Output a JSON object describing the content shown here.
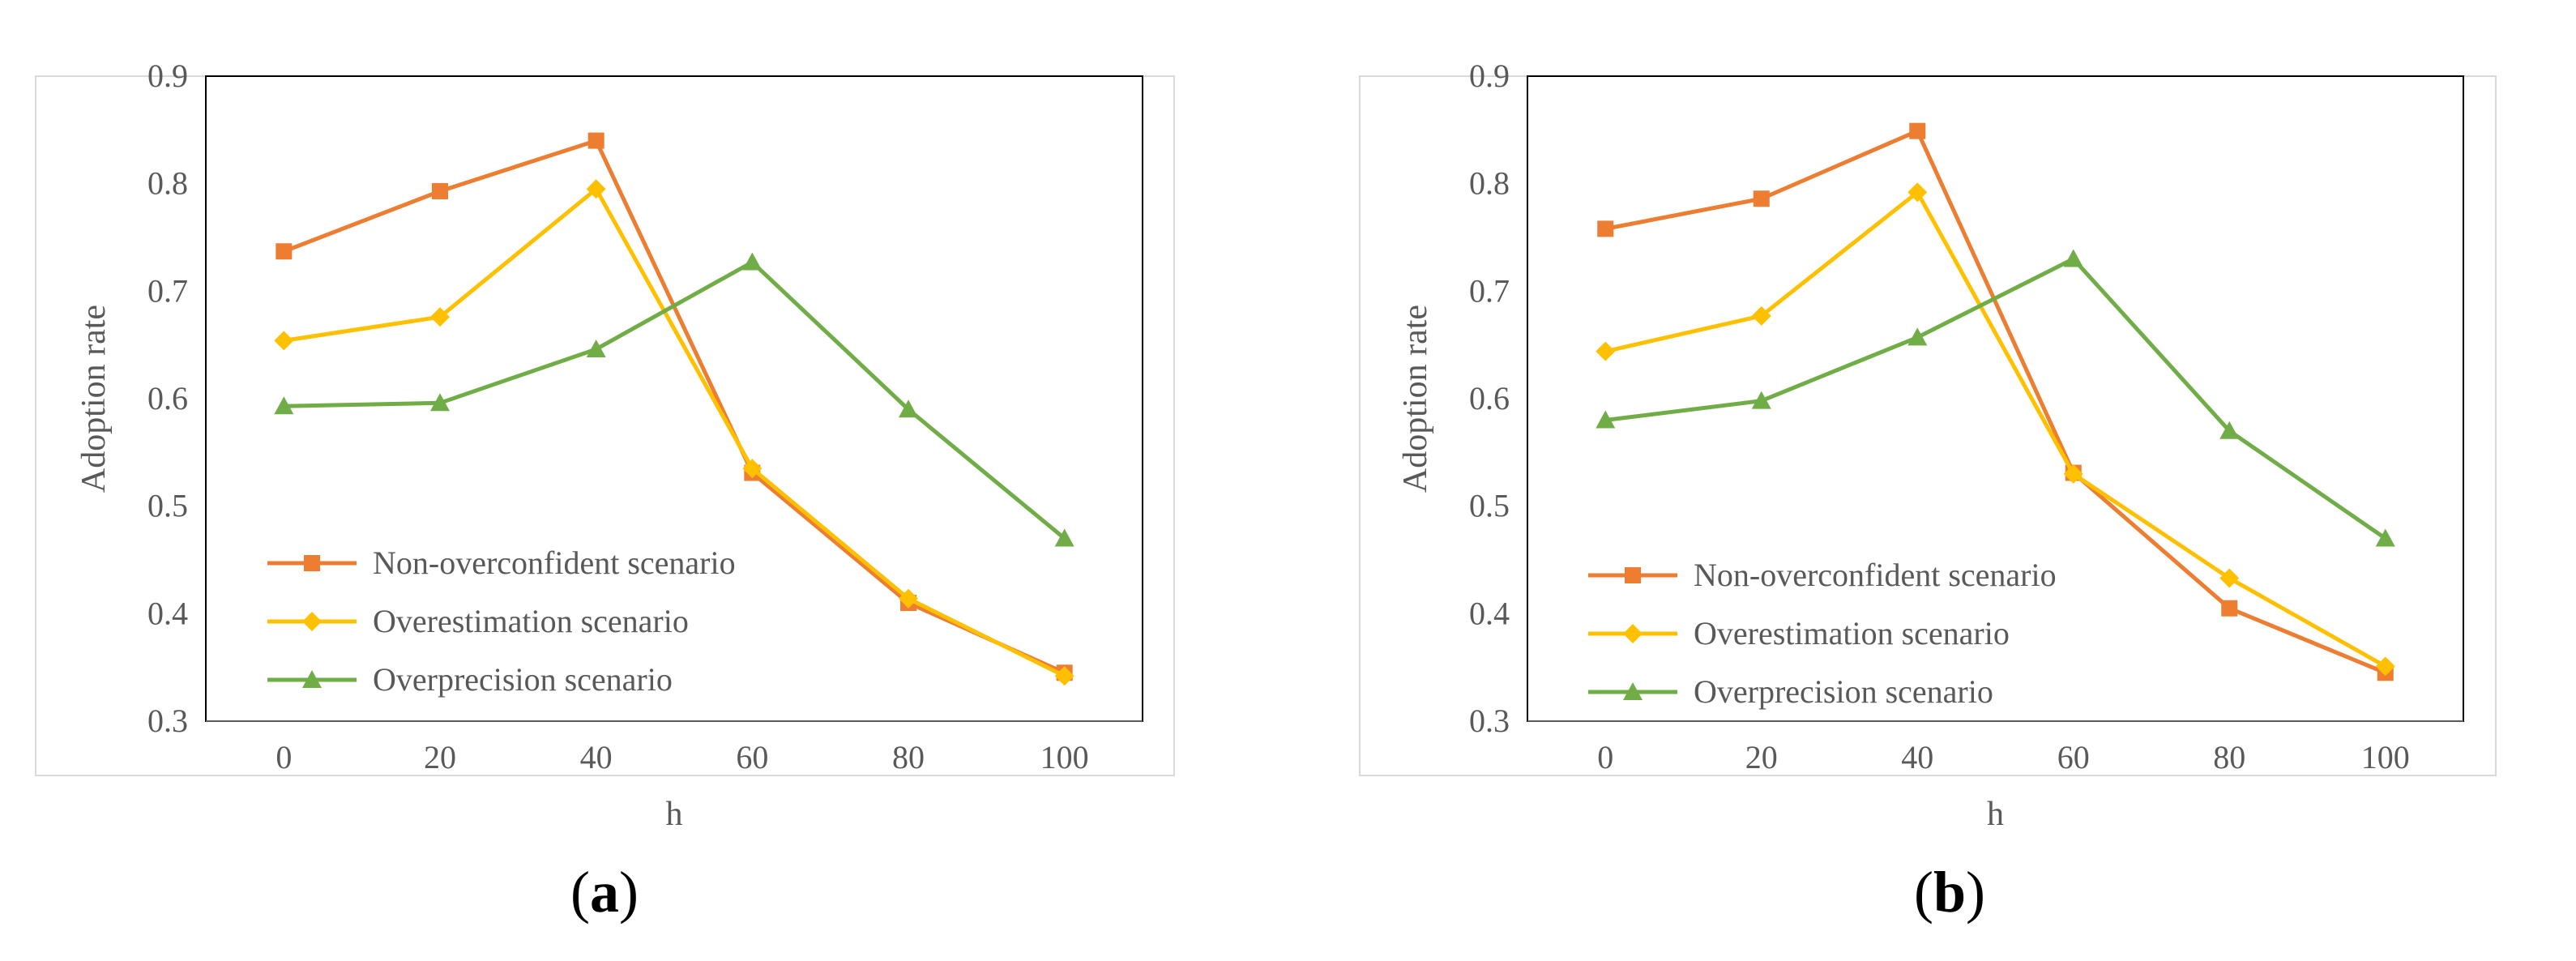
{
  "chart_data": [
    {
      "type": "line",
      "panel_label_open": "(",
      "panel_label_letter": "a",
      "panel_label_close": ")",
      "xlabel": "h",
      "ylabel": "Adoption rate",
      "x": [
        0,
        20,
        40,
        60,
        80,
        100
      ],
      "x_tick_labels": [
        "0",
        "20",
        "40",
        "60",
        "80",
        "100"
      ],
      "ylim": [
        0.3,
        0.9
      ],
      "y_ticks": [
        0.3,
        0.4,
        0.5,
        0.6,
        0.7,
        0.8,
        0.9
      ],
      "y_tick_labels": [
        "0.3",
        "0.4",
        "0.5",
        "0.6",
        "0.7",
        "0.8",
        "0.9"
      ],
      "grid": false,
      "legend_position": "bottom-left",
      "series": [
        {
          "name": "Non-overconfident scenario",
          "marker": "square",
          "color": "#ED7D31",
          "values": [
            0.737,
            0.793,
            0.84,
            0.531,
            0.41,
            0.345
          ]
        },
        {
          "name": "Overestimation  scenario",
          "marker": "diamond",
          "color": "#FFC000",
          "values": [
            0.654,
            0.676,
            0.795,
            0.535,
            0.414,
            0.342
          ]
        },
        {
          "name": "Overprecision scenario",
          "marker": "triangle",
          "color": "#70AD47",
          "values": [
            0.593,
            0.596,
            0.646,
            0.727,
            0.59,
            0.47
          ]
        }
      ]
    },
    {
      "type": "line",
      "panel_label_open": "(",
      "panel_label_letter": "b",
      "panel_label_close": ")",
      "xlabel": "h",
      "ylabel": "Adoption rate",
      "x": [
        0,
        20,
        40,
        60,
        80,
        100
      ],
      "x_tick_labels": [
        "0",
        "20",
        "40",
        "60",
        "80",
        "100"
      ],
      "ylim": [
        0.3,
        0.9
      ],
      "y_ticks": [
        0.3,
        0.4,
        0.5,
        0.6,
        0.7,
        0.8,
        0.9
      ],
      "y_tick_labels": [
        "0.3",
        "0.4",
        "0.5",
        "0.6",
        "0.7",
        "0.8",
        "0.9"
      ],
      "grid": false,
      "legend_position": "bottom-left",
      "series": [
        {
          "name": "Non-overconfident scenario",
          "marker": "square",
          "color": "#ED7D31",
          "values": [
            0.758,
            0.786,
            0.849,
            0.531,
            0.405,
            0.345
          ]
        },
        {
          "name": "Overestimation  scenario",
          "marker": "diamond",
          "color": "#FFC000",
          "values": [
            0.644,
            0.677,
            0.792,
            0.53,
            0.433,
            0.351
          ]
        },
        {
          "name": "Overprecision scenario",
          "marker": "triangle",
          "color": "#70AD47",
          "values": [
            0.58,
            0.598,
            0.657,
            0.73,
            0.57,
            0.47
          ]
        }
      ]
    }
  ],
  "style": {
    "axis_color": "#595959",
    "frame_color": "#D9D9D9",
    "text_color": "#595959"
  }
}
